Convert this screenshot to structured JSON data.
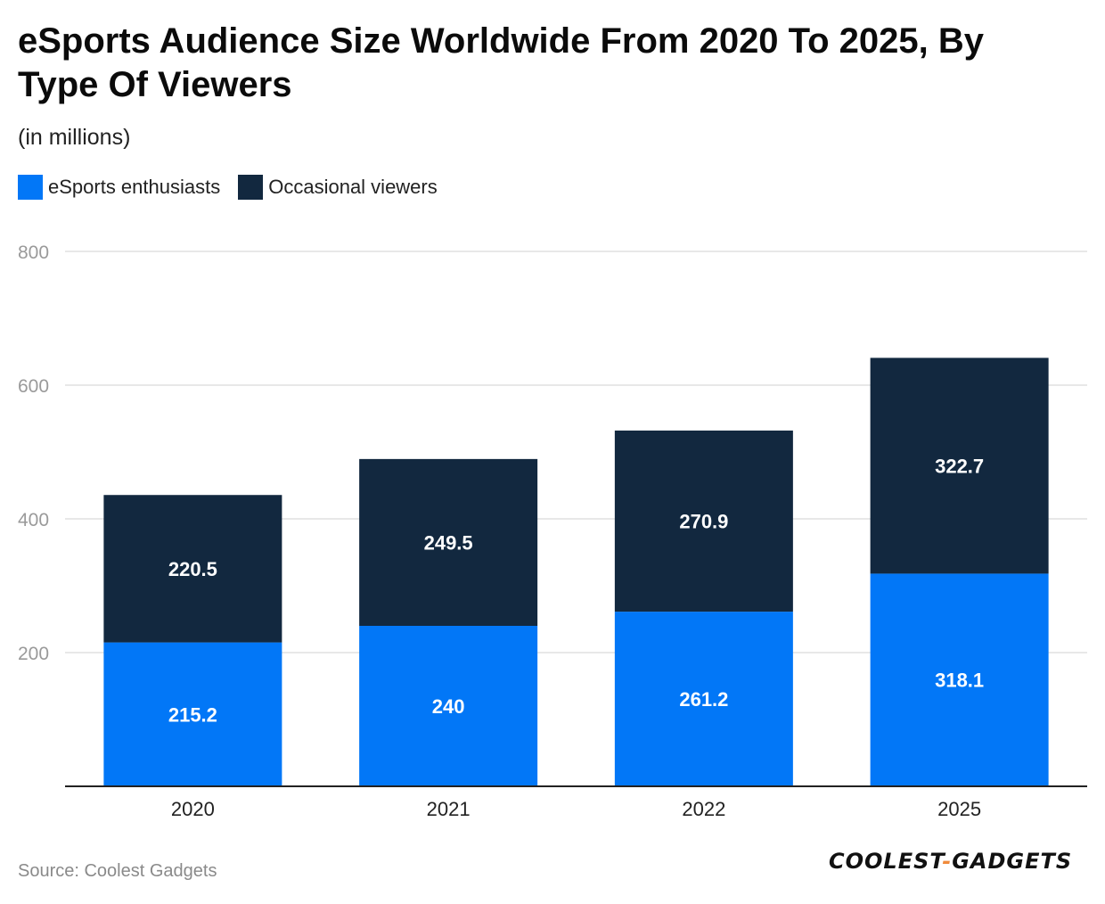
{
  "chart_data": {
    "type": "bar",
    "stacked": true,
    "title": "eSports Audience Size Worldwide From 2020 To 2025, By Type Of Viewers",
    "subtitle": "(in millions)",
    "categories": [
      "2020",
      "2021",
      "2022",
      "2025"
    ],
    "series": [
      {
        "name": "eSports enthusiasts",
        "color": "#0277f7",
        "values": [
          215.2,
          240,
          261.2,
          318.1
        ]
      },
      {
        "name": "Occasional viewers",
        "color": "#12283f",
        "values": [
          220.5,
          249.5,
          270.9,
          322.7
        ]
      }
    ],
    "ylim": [
      0,
      800
    ],
    "yticks": [
      200,
      400,
      600,
      800
    ],
    "xlabel": "",
    "ylabel": "",
    "grid": true,
    "legend_position": "top-left"
  },
  "source": "Source: Coolest Gadgets",
  "logo": {
    "part1": "COOLEST",
    "dash": "-",
    "part2": "GADGETS"
  }
}
